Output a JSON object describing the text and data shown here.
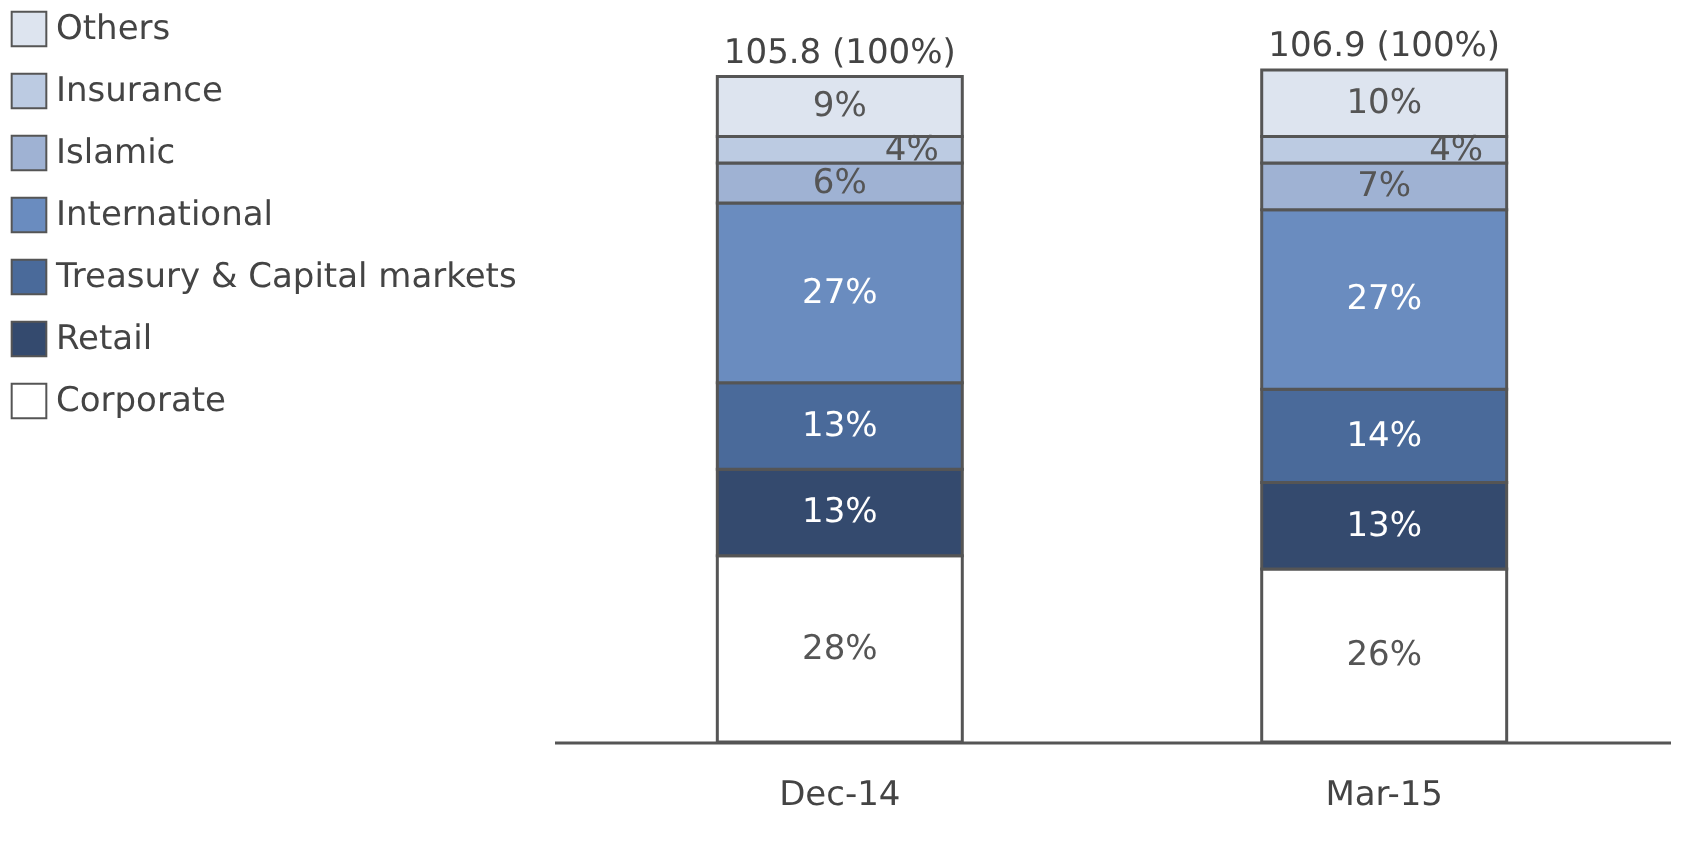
{
  "chart_data": {
    "type": "bar",
    "stacked": true,
    "legend": "left",
    "categories": [
      "Dec-14",
      "Mar-15"
    ],
    "series": [
      {
        "name": "Corporate",
        "color": "#ffffff",
        "values": [
          28,
          26
        ],
        "value_labels": [
          "28%",
          "26%"
        ]
      },
      {
        "name": "Retail",
        "color": "#344a6e",
        "values": [
          13,
          13
        ],
        "value_labels": [
          "13%",
          "13%"
        ]
      },
      {
        "name": "Treasury & Capital markets",
        "color": "#4a6a9a",
        "values": [
          13,
          14
        ],
        "value_labels": [
          "13%",
          "14%"
        ]
      },
      {
        "name": "International",
        "color": "#6a8cbf",
        "values": [
          27,
          27
        ],
        "value_labels": [
          "27%",
          "27%"
        ]
      },
      {
        "name": "Islamic",
        "color": "#9fb2d3",
        "values": [
          6,
          7
        ],
        "value_labels": [
          "6%",
          "7%"
        ]
      },
      {
        "name": "Insurance",
        "color": "#bccbe2",
        "values": [
          4,
          4
        ],
        "value_labels": [
          "4%",
          "4%"
        ]
      },
      {
        "name": "Others",
        "color": "#dde4ef",
        "values": [
          9,
          10
        ],
        "value_labels": [
          "9%",
          "10%"
        ]
      }
    ],
    "totals": [
      "105.8 (100%)",
      "106.9 (100%)"
    ]
  }
}
